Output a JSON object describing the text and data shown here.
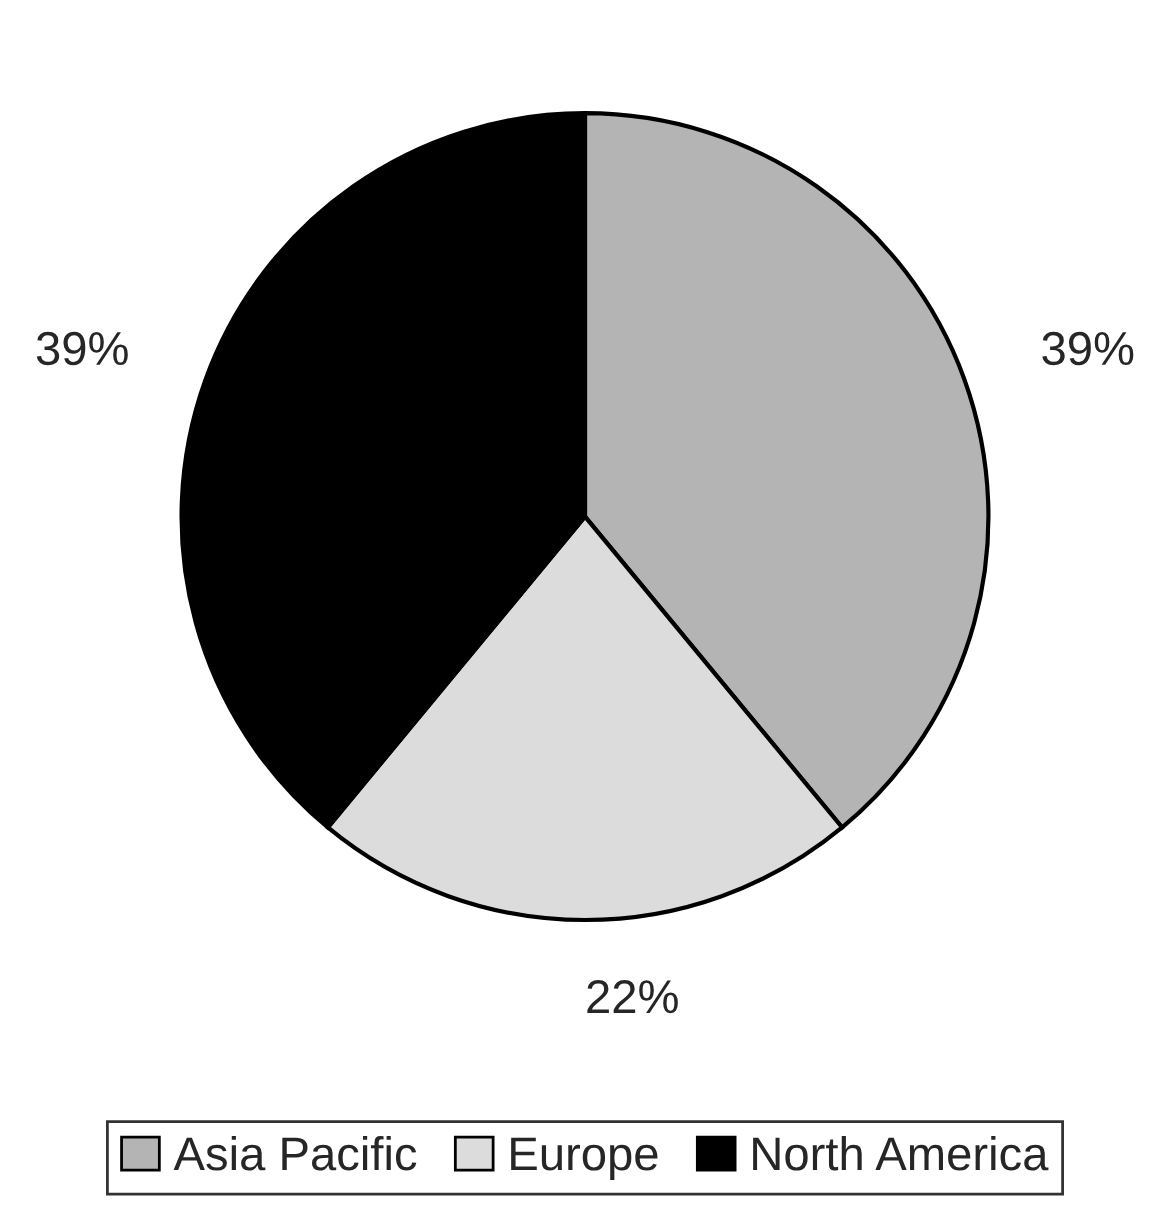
{
  "chart_data": {
    "type": "pie",
    "categories": [
      "Asia Pacific",
      "Europe",
      "North America"
    ],
    "values": [
      39,
      22,
      39
    ],
    "colors": [
      "#b4b4b4",
      "#dcdcdc",
      "#000000"
    ],
    "value_labels": [
      "39%",
      "22%",
      "39%"
    ],
    "legend": "bottom"
  }
}
